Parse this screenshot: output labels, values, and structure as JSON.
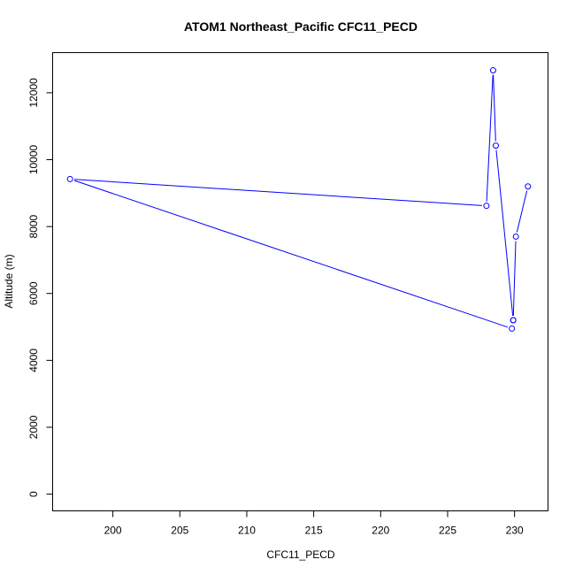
{
  "chart_data": {
    "type": "line",
    "title": "ATOM1 Northeast_Pacific CFC11_PECD",
    "xlabel": "CFC11_PECD",
    "ylabel": "Altitude (m)",
    "xlim": [
      195.5,
      232.5
    ],
    "ylim": [
      -500,
      13200
    ],
    "xticks": [
      200,
      205,
      210,
      215,
      220,
      225,
      230
    ],
    "yticks": [
      0,
      2000,
      4000,
      6000,
      8000,
      10000,
      12000
    ],
    "grid": false,
    "series": [
      {
        "color": "#0000ff",
        "marker": "open-circle",
        "x": [
          231.0,
          230.1,
          229.9,
          229.8,
          196.8,
          227.9,
          228.4,
          228.6,
          229.9
        ],
        "y": [
          9200,
          7700,
          5200,
          4950,
          9420,
          8620,
          12670,
          10420,
          5200
        ]
      }
    ]
  }
}
